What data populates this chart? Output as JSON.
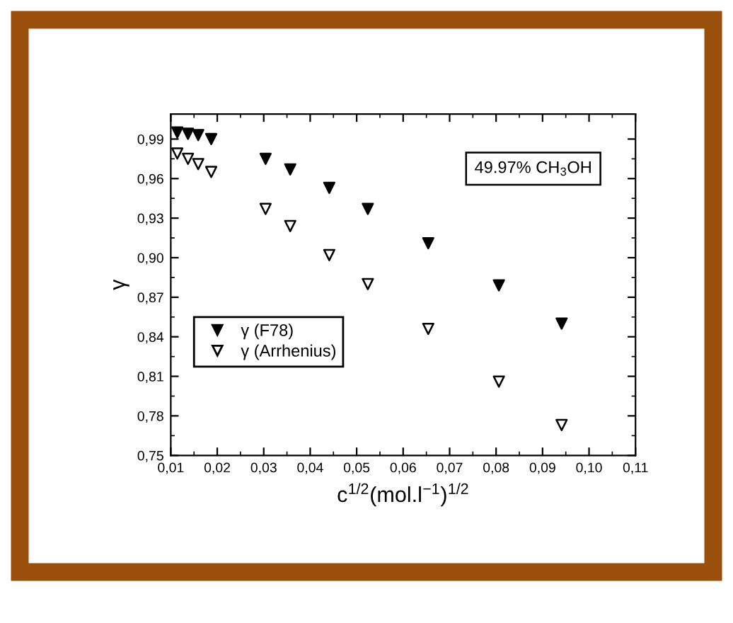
{
  "chart_data": {
    "type": "scatter",
    "xlabel": "c$^{1/2}$(mol.l$^{−1}$)$^{1/2}$",
    "ylabel": "γ",
    "annotations": [
      "49.97% CH$_{3}$OH"
    ],
    "x": [
      0.0114,
      0.0137,
      0.0159,
      0.0187,
      0.0304,
      0.0357,
      0.0441,
      0.0524,
      0.0654,
      0.0806,
      0.0941
    ],
    "series": [
      {
        "name": "γ (F78)",
        "color": "#000000",
        "marker": "triangle",
        "values": [
          0.995,
          0.994,
          0.993,
          0.99,
          0.975,
          0.967,
          0.953,
          0.937,
          0.911,
          0.879,
          0.85
        ]
      },
      {
        "name": "γ (Arrhenius)",
        "color": "#ffffff",
        "marker": "triangle",
        "values": [
          0.979,
          0.975,
          0.971,
          0.965,
          0.937,
          0.924,
          0.902,
          0.88,
          0.846,
          0.806,
          0.773
        ]
      }
    ],
    "xlim": [
      0.01,
      0.11
    ],
    "ylim": [
      0.75,
      1.009
    ],
    "xticks": [
      {
        "value": 0.01,
        "label": "0,01"
      },
      {
        "value": 0.02,
        "label": "0,02"
      },
      {
        "value": 0.03,
        "label": "0,03"
      },
      {
        "value": 0.04,
        "label": "0,04"
      },
      {
        "value": 0.05,
        "label": "0,05"
      },
      {
        "value": 0.06,
        "label": "0,06"
      },
      {
        "value": 0.07,
        "label": "0,07"
      },
      {
        "value": 0.08,
        "label": "0,08"
      },
      {
        "value": 0.09,
        "label": "0,09"
      },
      {
        "value": 0.1,
        "label": "0,10"
      },
      {
        "value": 0.11,
        "label": "0,11"
      }
    ],
    "yticks": [
      {
        "value": 0.75,
        "label": "0,75"
      },
      {
        "value": 0.78,
        "label": "0,78"
      },
      {
        "value": 0.81,
        "label": "0,81"
      },
      {
        "value": 0.84,
        "label": "0,84"
      },
      {
        "value": 0.87,
        "label": "0,87"
      },
      {
        "value": 0.9,
        "label": "0,90"
      },
      {
        "value": 0.93,
        "label": "0,93"
      },
      {
        "value": 0.96,
        "label": "0,96"
      },
      {
        "value": 0.99,
        "label": "0,99"
      }
    ],
    "grid": false,
    "legend": "left"
  }
}
